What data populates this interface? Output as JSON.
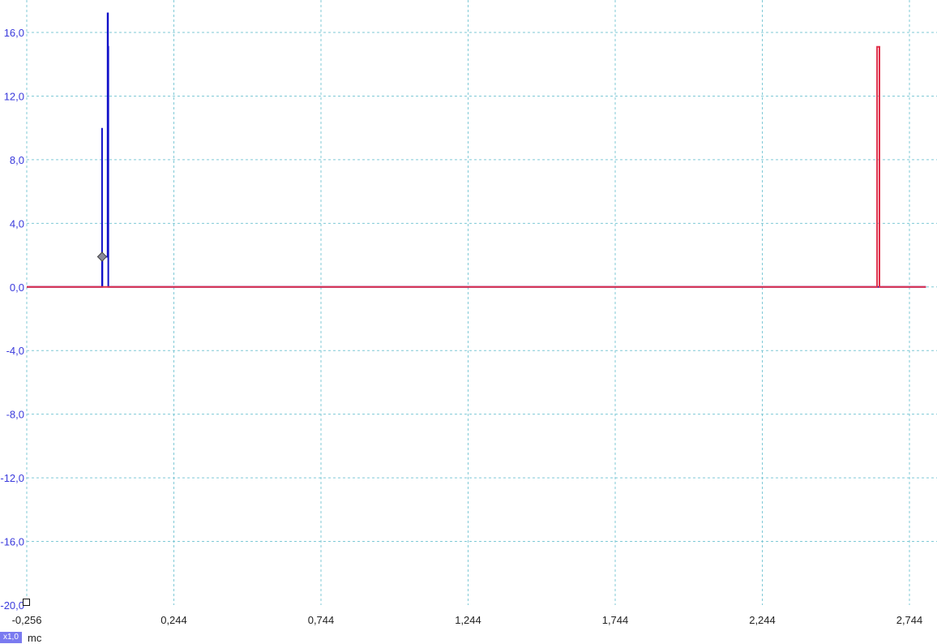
{
  "scale_badge": "x1,0",
  "x_unit": "mc",
  "chart_data": {
    "type": "line",
    "title": "",
    "xlabel": "",
    "ylabel": "",
    "xlim": [
      -0.256,
      2.8
    ],
    "ylim": [
      -20,
      17
    ],
    "x_ticks": [
      -0.256,
      0.244,
      0.744,
      1.244,
      1.744,
      2.244,
      2.744
    ],
    "x_tick_labels": [
      "-0,256",
      "0,244",
      "0,744",
      "1,244",
      "1,744",
      "2,244",
      "2,744"
    ],
    "y_ticks": [
      16,
      12,
      8,
      4,
      0,
      -4,
      -8,
      -12,
      -16,
      -20
    ],
    "y_tick_labels": [
      "16,0",
      "12,0",
      "8,0",
      "4,0",
      "0,0",
      "-4,0",
      "-8,0",
      "-12,0",
      "-16,0",
      "-20,0"
    ],
    "grid": true,
    "series": [
      {
        "color": "#1010c8",
        "x": [
          -0.256,
          0.0,
          0.0,
          0.0,
          0.001,
          0.001,
          0.019,
          0.019,
          0.02,
          0.02,
          0.021,
          0.021,
          2.8
        ],
        "y": [
          0.0,
          0.0,
          10.0,
          0.0,
          0.0,
          1.9,
          1.9,
          17.2,
          17.2,
          15.1,
          15.1,
          0.0,
          0.0
        ]
      },
      {
        "color": "#e0304a",
        "x": [
          -0.256,
          2.634,
          2.634,
          2.642,
          2.642,
          2.8
        ],
        "y": [
          0.0,
          0.0,
          15.1,
          15.1,
          0.0,
          0.0
        ]
      }
    ],
    "markers": [
      {
        "series": 0,
        "x": 0.0,
        "y": 1.9,
        "shape": "diamond"
      }
    ]
  }
}
